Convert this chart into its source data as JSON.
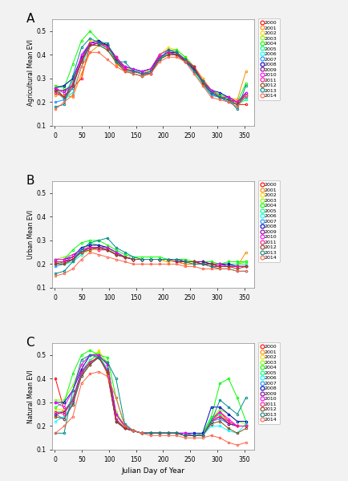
{
  "years": [
    2000,
    2001,
    2002,
    2003,
    2004,
    2005,
    2006,
    2007,
    2008,
    2009,
    2010,
    2011,
    2012,
    2013,
    2014
  ],
  "colors": [
    "#FF0000",
    "#FF8800",
    "#DDDD00",
    "#88DD00",
    "#00DD00",
    "#00DD88",
    "#00DDDD",
    "#0088FF",
    "#0000FF",
    "#8800DD",
    "#DD00DD",
    "#FF0088",
    "#884400",
    "#006688",
    "#FF8888"
  ],
  "julian_days": [
    1,
    17,
    33,
    49,
    65,
    81,
    97,
    113,
    129,
    145,
    161,
    177,
    193,
    209,
    225,
    241,
    257,
    273,
    289,
    305,
    321,
    337,
    353
  ],
  "agri_data": [
    [
      0.26,
      0.22,
      0.26,
      0.3,
      0.44,
      0.45,
      0.44,
      0.38,
      0.33,
      0.33,
      0.32,
      0.32,
      0.38,
      0.4,
      0.4,
      0.38,
      0.35,
      0.3,
      0.25,
      0.22,
      0.2,
      0.19,
      0.19
    ],
    [
      0.23,
      0.23,
      0.22,
      0.32,
      0.41,
      0.44,
      0.44,
      0.36,
      0.34,
      0.33,
      0.32,
      0.33,
      0.39,
      0.4,
      0.41,
      0.38,
      0.34,
      0.29,
      0.24,
      0.23,
      0.22,
      0.21,
      0.33
    ],
    [
      0.24,
      0.22,
      0.24,
      0.35,
      0.46,
      0.46,
      0.43,
      0.39,
      0.33,
      0.33,
      0.32,
      0.34,
      0.4,
      0.43,
      0.42,
      0.39,
      0.35,
      0.3,
      0.25,
      0.23,
      0.21,
      0.19,
      0.22
    ],
    [
      0.26,
      0.27,
      0.3,
      0.37,
      0.44,
      0.45,
      0.44,
      0.38,
      0.35,
      0.33,
      0.32,
      0.33,
      0.38,
      0.41,
      0.4,
      0.38,
      0.34,
      0.28,
      0.24,
      0.23,
      0.21,
      0.2,
      0.23
    ],
    [
      0.27,
      0.26,
      0.36,
      0.46,
      0.5,
      0.46,
      0.44,
      0.39,
      0.34,
      0.33,
      0.33,
      0.34,
      0.4,
      0.42,
      0.42,
      0.39,
      0.35,
      0.29,
      0.25,
      0.23,
      0.22,
      0.2,
      0.28
    ],
    [
      0.25,
      0.24,
      0.29,
      0.38,
      0.45,
      0.45,
      0.42,
      0.37,
      0.34,
      0.32,
      0.31,
      0.33,
      0.38,
      0.4,
      0.4,
      0.37,
      0.33,
      0.27,
      0.23,
      0.22,
      0.21,
      0.19,
      0.21
    ],
    [
      0.25,
      0.21,
      0.24,
      0.35,
      0.44,
      0.44,
      0.43,
      0.38,
      0.34,
      0.32,
      0.31,
      0.33,
      0.38,
      0.41,
      0.41,
      0.38,
      0.34,
      0.28,
      0.23,
      0.22,
      0.2,
      0.18,
      0.24
    ],
    [
      0.2,
      0.21,
      0.26,
      0.38,
      0.44,
      0.45,
      0.44,
      0.38,
      0.34,
      0.33,
      0.33,
      0.34,
      0.39,
      0.4,
      0.4,
      0.37,
      0.34,
      0.28,
      0.23,
      0.22,
      0.2,
      0.19,
      0.22
    ],
    [
      0.26,
      0.27,
      0.3,
      0.39,
      0.45,
      0.46,
      0.44,
      0.39,
      0.35,
      0.34,
      0.33,
      0.34,
      0.39,
      0.41,
      0.41,
      0.37,
      0.34,
      0.29,
      0.25,
      0.24,
      0.22,
      0.2,
      0.24
    ],
    [
      0.25,
      0.25,
      0.27,
      0.37,
      0.44,
      0.45,
      0.44,
      0.38,
      0.34,
      0.33,
      0.32,
      0.32,
      0.39,
      0.41,
      0.4,
      0.38,
      0.34,
      0.29,
      0.24,
      0.22,
      0.21,
      0.2,
      0.23
    ],
    [
      0.26,
      0.24,
      0.27,
      0.4,
      0.45,
      0.45,
      0.43,
      0.39,
      0.35,
      0.34,
      0.33,
      0.34,
      0.4,
      0.42,
      0.41,
      0.38,
      0.35,
      0.29,
      0.25,
      0.22,
      0.22,
      0.2,
      0.24
    ],
    [
      0.24,
      0.22,
      0.28,
      0.38,
      0.44,
      0.45,
      0.43,
      0.39,
      0.34,
      0.33,
      0.32,
      0.33,
      0.39,
      0.41,
      0.4,
      0.38,
      0.35,
      0.28,
      0.24,
      0.22,
      0.21,
      0.2,
      0.23
    ],
    [
      0.25,
      0.22,
      0.27,
      0.37,
      0.44,
      0.44,
      0.42,
      0.37,
      0.33,
      0.32,
      0.31,
      0.32,
      0.38,
      0.4,
      0.4,
      0.37,
      0.35,
      0.28,
      0.24,
      0.22,
      0.21,
      0.19,
      0.23
    ],
    [
      0.18,
      0.19,
      0.31,
      0.43,
      0.47,
      0.45,
      0.45,
      0.37,
      0.37,
      0.33,
      0.32,
      0.33,
      0.38,
      0.42,
      0.41,
      0.38,
      0.33,
      0.29,
      0.24,
      0.22,
      0.21,
      0.17,
      0.27
    ],
    [
      0.17,
      0.2,
      0.23,
      0.35,
      0.41,
      0.41,
      0.38,
      0.35,
      0.33,
      0.32,
      0.31,
      0.32,
      0.37,
      0.39,
      0.39,
      0.37,
      0.32,
      0.27,
      0.22,
      0.21,
      0.2,
      0.18,
      0.23
    ]
  ],
  "urban_data": [
    [
      0.2,
      0.21,
      0.22,
      0.25,
      0.27,
      0.27,
      0.26,
      0.24,
      0.23,
      0.22,
      0.22,
      0.22,
      0.22,
      0.21,
      0.21,
      0.2,
      0.2,
      0.2,
      0.19,
      0.19,
      0.19,
      0.19,
      0.19
    ],
    [
      0.2,
      0.2,
      0.22,
      0.25,
      0.28,
      0.28,
      0.27,
      0.25,
      0.23,
      0.22,
      0.22,
      0.22,
      0.22,
      0.21,
      0.21,
      0.2,
      0.2,
      0.2,
      0.2,
      0.19,
      0.19,
      0.19,
      0.25
    ],
    [
      0.21,
      0.2,
      0.21,
      0.24,
      0.26,
      0.26,
      0.26,
      0.24,
      0.23,
      0.22,
      0.22,
      0.22,
      0.22,
      0.21,
      0.21,
      0.21,
      0.2,
      0.2,
      0.2,
      0.2,
      0.2,
      0.2,
      0.21
    ],
    [
      0.22,
      0.23,
      0.24,
      0.26,
      0.27,
      0.27,
      0.27,
      0.24,
      0.23,
      0.22,
      0.22,
      0.22,
      0.22,
      0.22,
      0.22,
      0.21,
      0.21,
      0.2,
      0.2,
      0.2,
      0.2,
      0.2,
      0.21
    ],
    [
      0.22,
      0.22,
      0.26,
      0.29,
      0.3,
      0.3,
      0.28,
      0.26,
      0.24,
      0.23,
      0.23,
      0.23,
      0.23,
      0.22,
      0.22,
      0.22,
      0.21,
      0.21,
      0.21,
      0.2,
      0.21,
      0.21,
      0.21
    ],
    [
      0.21,
      0.21,
      0.23,
      0.26,
      0.29,
      0.28,
      0.27,
      0.25,
      0.23,
      0.22,
      0.22,
      0.22,
      0.22,
      0.22,
      0.22,
      0.21,
      0.21,
      0.21,
      0.2,
      0.2,
      0.2,
      0.2,
      0.2
    ],
    [
      0.21,
      0.2,
      0.21,
      0.24,
      0.27,
      0.27,
      0.26,
      0.24,
      0.23,
      0.22,
      0.22,
      0.22,
      0.22,
      0.22,
      0.22,
      0.21,
      0.21,
      0.21,
      0.2,
      0.2,
      0.19,
      0.19,
      0.19
    ],
    [
      0.19,
      0.2,
      0.22,
      0.26,
      0.27,
      0.27,
      0.26,
      0.24,
      0.23,
      0.22,
      0.22,
      0.22,
      0.22,
      0.22,
      0.22,
      0.21,
      0.21,
      0.2,
      0.2,
      0.19,
      0.19,
      0.19,
      0.19
    ],
    [
      0.22,
      0.22,
      0.23,
      0.27,
      0.28,
      0.28,
      0.27,
      0.25,
      0.23,
      0.22,
      0.22,
      0.22,
      0.22,
      0.22,
      0.22,
      0.21,
      0.21,
      0.21,
      0.2,
      0.2,
      0.2,
      0.19,
      0.19
    ],
    [
      0.21,
      0.21,
      0.22,
      0.25,
      0.27,
      0.27,
      0.26,
      0.24,
      0.23,
      0.22,
      0.22,
      0.22,
      0.22,
      0.22,
      0.21,
      0.21,
      0.21,
      0.21,
      0.2,
      0.2,
      0.19,
      0.19,
      0.19
    ],
    [
      0.22,
      0.22,
      0.24,
      0.26,
      0.27,
      0.27,
      0.27,
      0.25,
      0.23,
      0.22,
      0.22,
      0.22,
      0.22,
      0.22,
      0.22,
      0.21,
      0.21,
      0.2,
      0.2,
      0.2,
      0.19,
      0.19,
      0.19
    ],
    [
      0.21,
      0.21,
      0.23,
      0.25,
      0.27,
      0.26,
      0.26,
      0.24,
      0.23,
      0.22,
      0.22,
      0.22,
      0.22,
      0.22,
      0.22,
      0.21,
      0.21,
      0.2,
      0.2,
      0.19,
      0.19,
      0.19,
      0.19
    ],
    [
      0.2,
      0.2,
      0.22,
      0.25,
      0.26,
      0.27,
      0.26,
      0.24,
      0.23,
      0.22,
      0.22,
      0.22,
      0.22,
      0.22,
      0.22,
      0.21,
      0.21,
      0.2,
      0.2,
      0.19,
      0.19,
      0.18,
      0.19
    ],
    [
      0.16,
      0.17,
      0.21,
      0.26,
      0.29,
      0.3,
      0.31,
      0.27,
      0.25,
      0.23,
      0.22,
      0.22,
      0.22,
      0.22,
      0.22,
      0.21,
      0.2,
      0.2,
      0.19,
      0.18,
      0.18,
      0.17,
      0.17
    ],
    [
      0.15,
      0.16,
      0.18,
      0.22,
      0.25,
      0.24,
      0.23,
      0.22,
      0.21,
      0.2,
      0.2,
      0.2,
      0.2,
      0.2,
      0.2,
      0.19,
      0.19,
      0.18,
      0.18,
      0.18,
      0.18,
      0.17,
      0.17
    ]
  ],
  "natural_data": [
    [
      0.4,
      0.27,
      0.3,
      0.42,
      0.46,
      0.5,
      0.42,
      0.22,
      0.19,
      0.18,
      0.17,
      0.17,
      0.17,
      0.17,
      0.17,
      0.16,
      0.16,
      0.16,
      0.23,
      0.26,
      0.22,
      0.2,
      0.2
    ],
    [
      0.24,
      0.27,
      0.3,
      0.42,
      0.46,
      0.5,
      0.42,
      0.22,
      0.19,
      0.18,
      0.17,
      0.17,
      0.17,
      0.17,
      0.17,
      0.16,
      0.16,
      0.16,
      0.23,
      0.24,
      0.21,
      0.2,
      0.2
    ],
    [
      0.27,
      0.27,
      0.3,
      0.42,
      0.47,
      0.52,
      0.46,
      0.25,
      0.19,
      0.18,
      0.17,
      0.17,
      0.17,
      0.17,
      0.17,
      0.16,
      0.16,
      0.16,
      0.23,
      0.25,
      0.22,
      0.2,
      0.2
    ],
    [
      0.31,
      0.31,
      0.37,
      0.46,
      0.5,
      0.51,
      0.47,
      0.26,
      0.2,
      0.18,
      0.17,
      0.17,
      0.17,
      0.17,
      0.17,
      0.17,
      0.16,
      0.16,
      0.23,
      0.27,
      0.25,
      0.22,
      0.21
    ],
    [
      0.28,
      0.3,
      0.42,
      0.5,
      0.52,
      0.5,
      0.49,
      0.32,
      0.2,
      0.18,
      0.17,
      0.17,
      0.17,
      0.17,
      0.17,
      0.16,
      0.16,
      0.17,
      0.24,
      0.38,
      0.4,
      0.32,
      0.22
    ],
    [
      0.26,
      0.26,
      0.32,
      0.43,
      0.48,
      0.5,
      0.44,
      0.23,
      0.19,
      0.18,
      0.17,
      0.17,
      0.17,
      0.17,
      0.17,
      0.16,
      0.16,
      0.16,
      0.23,
      0.25,
      0.21,
      0.2,
      0.2
    ],
    [
      0.22,
      0.24,
      0.29,
      0.41,
      0.46,
      0.49,
      0.43,
      0.22,
      0.19,
      0.18,
      0.17,
      0.17,
      0.17,
      0.17,
      0.17,
      0.16,
      0.16,
      0.16,
      0.2,
      0.2,
      0.18,
      0.17,
      0.21
    ],
    [
      0.25,
      0.23,
      0.3,
      0.42,
      0.47,
      0.49,
      0.44,
      0.23,
      0.19,
      0.18,
      0.17,
      0.17,
      0.17,
      0.17,
      0.17,
      0.16,
      0.16,
      0.16,
      0.22,
      0.23,
      0.21,
      0.2,
      0.2
    ],
    [
      0.3,
      0.3,
      0.35,
      0.44,
      0.5,
      0.5,
      0.46,
      0.25,
      0.2,
      0.18,
      0.17,
      0.17,
      0.17,
      0.17,
      0.17,
      0.17,
      0.17,
      0.17,
      0.28,
      0.28,
      0.25,
      0.22,
      0.22
    ],
    [
      0.25,
      0.26,
      0.31,
      0.43,
      0.47,
      0.49,
      0.43,
      0.22,
      0.19,
      0.18,
      0.17,
      0.17,
      0.17,
      0.17,
      0.17,
      0.16,
      0.16,
      0.16,
      0.22,
      0.24,
      0.21,
      0.2,
      0.2
    ],
    [
      0.3,
      0.28,
      0.35,
      0.46,
      0.5,
      0.5,
      0.46,
      0.25,
      0.2,
      0.18,
      0.17,
      0.17,
      0.17,
      0.17,
      0.17,
      0.17,
      0.16,
      0.16,
      0.22,
      0.26,
      0.23,
      0.2,
      0.2
    ],
    [
      0.26,
      0.25,
      0.31,
      0.43,
      0.47,
      0.49,
      0.43,
      0.23,
      0.19,
      0.18,
      0.17,
      0.17,
      0.17,
      0.17,
      0.17,
      0.16,
      0.16,
      0.16,
      0.22,
      0.24,
      0.22,
      0.2,
      0.2
    ],
    [
      0.24,
      0.23,
      0.29,
      0.41,
      0.46,
      0.49,
      0.43,
      0.22,
      0.19,
      0.18,
      0.17,
      0.17,
      0.17,
      0.17,
      0.17,
      0.16,
      0.16,
      0.16,
      0.21,
      0.22,
      0.19,
      0.17,
      0.19
    ],
    [
      0.17,
      0.17,
      0.35,
      0.48,
      0.5,
      0.49,
      0.47,
      0.4,
      0.21,
      0.18,
      0.17,
      0.17,
      0.17,
      0.17,
      0.17,
      0.16,
      0.16,
      0.16,
      0.22,
      0.31,
      0.28,
      0.25,
      0.32
    ],
    [
      0.17,
      0.2,
      0.24,
      0.38,
      0.42,
      0.43,
      0.41,
      0.32,
      0.2,
      0.18,
      0.17,
      0.16,
      0.16,
      0.16,
      0.16,
      0.15,
      0.15,
      0.15,
      0.16,
      0.15,
      0.13,
      0.12,
      0.13
    ]
  ],
  "panel_labels": [
    "A",
    "B",
    "C"
  ],
  "ylabels": [
    "Agricultural Mean EVI",
    "Urban Mean EVI",
    "Natural Mean EVI"
  ],
  "xlabel": "Julian Day of Year",
  "ylim_agri": [
    0.1,
    0.55
  ],
  "ylim_urban": [
    0.1,
    0.55
  ],
  "ylim_natural": [
    0.1,
    0.55
  ],
  "yticks": [
    0.1,
    0.2,
    0.3,
    0.4,
    0.5
  ],
  "xticks": [
    0,
    50,
    100,
    150,
    200,
    250,
    300,
    350
  ],
  "bg_color": "#ffffff",
  "outer_bg": "#f2f2f2"
}
